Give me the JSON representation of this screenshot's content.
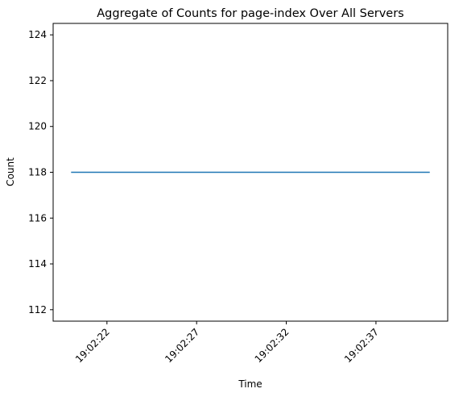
{
  "chart_data": {
    "type": "line",
    "title": "Aggregate of Counts for page-index Over All Servers",
    "xlabel": "Time",
    "ylabel": "Count",
    "x": [
      "19:02:20",
      "19:02:40"
    ],
    "xticks": [
      "19:02:22",
      "19:02:27",
      "19:02:32",
      "19:02:37"
    ],
    "yticks": [
      112,
      114,
      116,
      118,
      120,
      122,
      124
    ],
    "xlim": [
      "19:02:19",
      "19:02:41"
    ],
    "ylim": [
      111.5,
      124.5
    ],
    "series": [
      {
        "values": [
          118,
          118
        ],
        "color": "#1f77b4"
      }
    ],
    "grid": false,
    "legend": "none",
    "line_color": "#1f77b4"
  }
}
